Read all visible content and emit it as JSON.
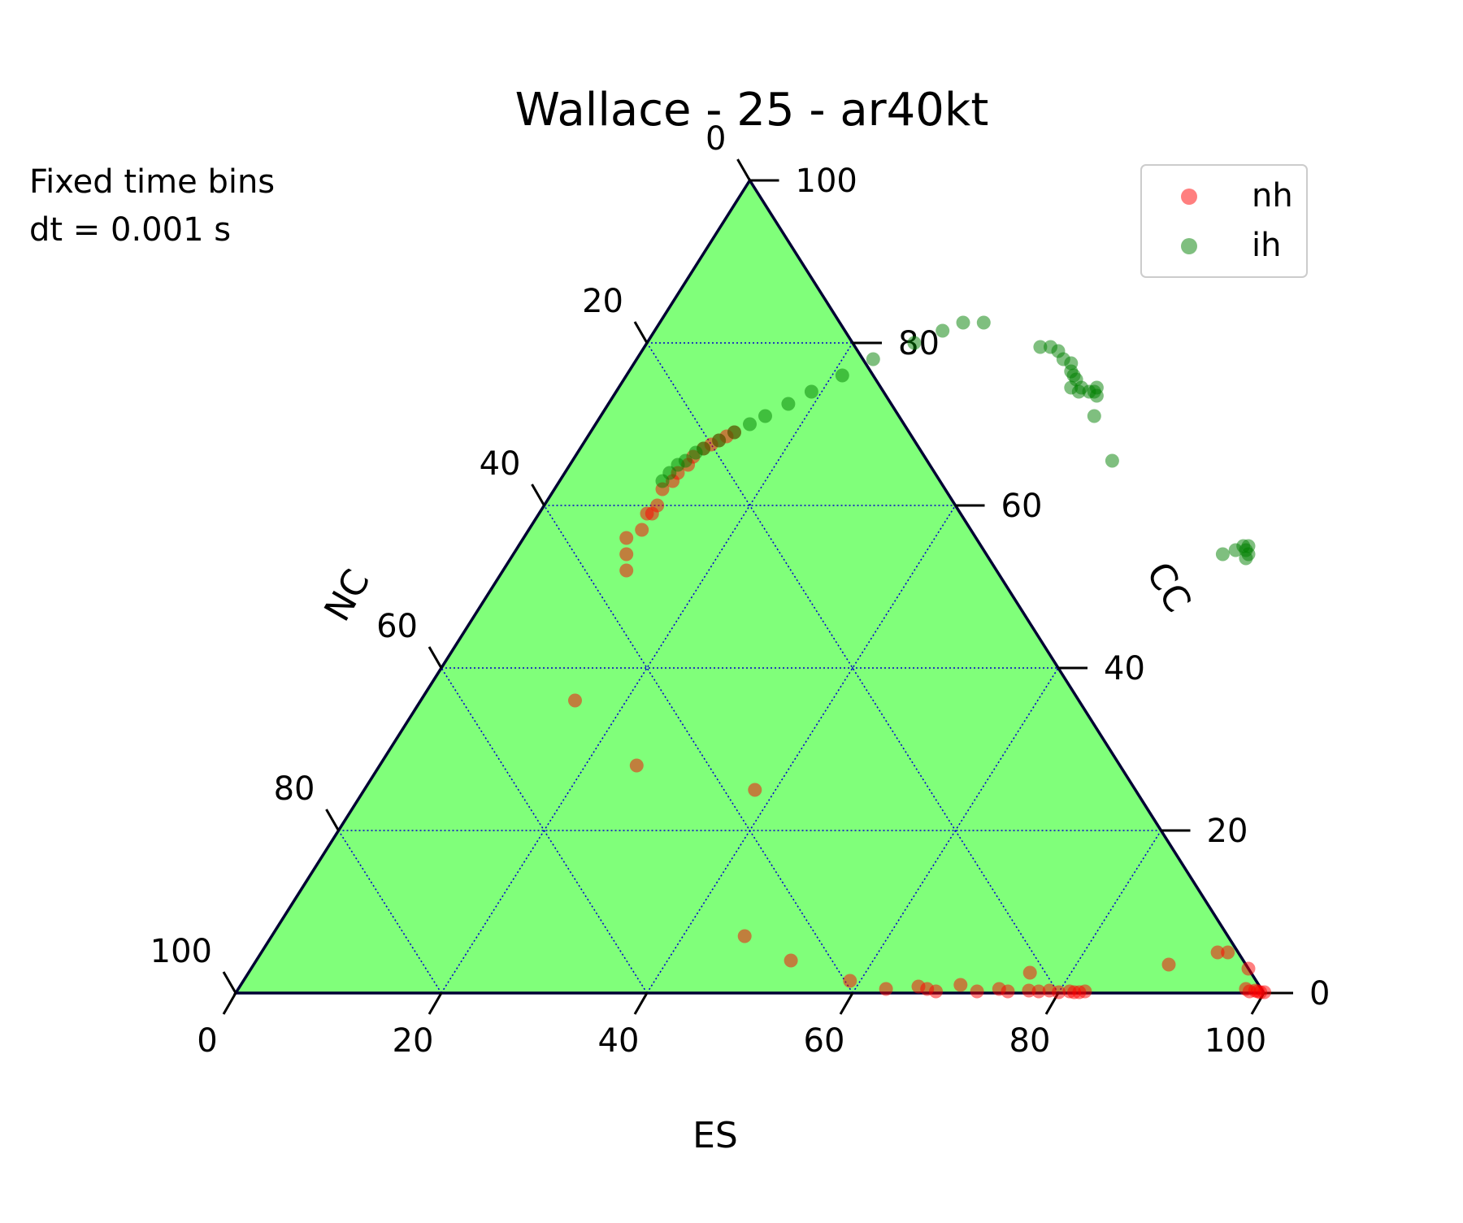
{
  "chart_data": {
    "type": "scatter",
    "subtype": "ternary",
    "title": "Wallace - 25 - ar40kt",
    "annotation_lines": [
      "Fixed time bins",
      "dt = 0.001 s"
    ],
    "axes": {
      "bottom": {
        "label": "ES",
        "ticks": [
          "0",
          "20",
          "40",
          "60",
          "80",
          "100"
        ]
      },
      "left": {
        "label": "NC",
        "ticks": [
          "100",
          "80",
          "60",
          "40",
          "20",
          "0"
        ]
      },
      "right": {
        "label": "CC",
        "ticks": [
          "0",
          "20",
          "40",
          "60",
          "80",
          "100"
        ]
      },
      "range": [
        0,
        100
      ],
      "grid": true
    },
    "background_color": "#80ff7a",
    "grid_color": "#0000cc",
    "legend": {
      "placement": "top-right",
      "entries": [
        "nh",
        "ih"
      ]
    },
    "series": [
      {
        "name": "nh",
        "color": "#ff0000",
        "opacity": 0.5,
        "points": [
          {
            "es": 14,
            "cc": 69
          },
          {
            "es": 13.5,
            "cc": 68.5
          },
          {
            "es": 13,
            "cc": 68
          },
          {
            "es": 12.5,
            "cc": 67.5
          },
          {
            "es": 12,
            "cc": 67
          },
          {
            "es": 11.5,
            "cc": 66
          },
          {
            "es": 11.5,
            "cc": 65
          },
          {
            "es": 11,
            "cc": 64
          },
          {
            "es": 11,
            "cc": 63
          },
          {
            "es": 10.5,
            "cc": 62
          },
          {
            "es": 11,
            "cc": 60
          },
          {
            "es": 10.5,
            "cc": 59
          },
          {
            "es": 11,
            "cc": 59
          },
          {
            "es": 11,
            "cc": 57
          },
          {
            "es": 10,
            "cc": 56
          },
          {
            "es": 11,
            "cc": 54
          },
          {
            "es": 12,
            "cc": 52
          },
          {
            "es": 15,
            "cc": 36
          },
          {
            "es": 25,
            "cc": 28
          },
          {
            "es": 38,
            "cc": 25
          },
          {
            "es": 46,
            "cc": 7
          },
          {
            "es": 52,
            "cc": 4
          },
          {
            "es": 59,
            "cc": 1.5
          },
          {
            "es": 63,
            "cc": 0.5
          },
          {
            "es": 66,
            "cc": 0.8
          },
          {
            "es": 67,
            "cc": 0.5
          },
          {
            "es": 68,
            "cc": 0.2
          },
          {
            "es": 70,
            "cc": 1
          },
          {
            "es": 72,
            "cc": 0.2
          },
          {
            "es": 74,
            "cc": 0.5
          },
          {
            "es": 75,
            "cc": 0.2
          },
          {
            "es": 76,
            "cc": 2.5
          },
          {
            "es": 77,
            "cc": 0.3
          },
          {
            "es": 78,
            "cc": 0.2
          },
          {
            "es": 79,
            "cc": 0.3
          },
          {
            "es": 80,
            "cc": 0.1
          },
          {
            "es": 81,
            "cc": 0.2
          },
          {
            "es": 81.5,
            "cc": 0.1
          },
          {
            "es": 82,
            "cc": 0.1
          },
          {
            "es": 82.5,
            "cc": 0.2
          },
          {
            "es": 89,
            "cc": 3.5
          },
          {
            "es": 93,
            "cc": 5
          },
          {
            "es": 94,
            "cc": 5
          },
          {
            "es": 97,
            "cc": 3
          },
          {
            "es": 98,
            "cc": 0.5
          },
          {
            "es": 98.5,
            "cc": 0.2
          },
          {
            "es": 99,
            "cc": 0.3
          },
          {
            "es": 99.3,
            "cc": 0.2
          },
          {
            "es": 99.6,
            "cc": 0.1
          },
          {
            "es": 100,
            "cc": 0.1
          }
        ]
      },
      {
        "name": "ih",
        "color": "#008000",
        "opacity": 0.5,
        "points": [
          {
            "es": 10,
            "cc": 63
          },
          {
            "es": 10.2,
            "cc": 64
          },
          {
            "es": 10.5,
            "cc": 65
          },
          {
            "es": 11,
            "cc": 65.5
          },
          {
            "es": 11.5,
            "cc": 66.5
          },
          {
            "es": 12,
            "cc": 67
          },
          {
            "es": 13,
            "cc": 68
          },
          {
            "es": 14,
            "cc": 69
          },
          {
            "es": 15,
            "cc": 70
          },
          {
            "es": 16,
            "cc": 71
          },
          {
            "es": 17.5,
            "cc": 72.5
          },
          {
            "es": 19,
            "cc": 74
          },
          {
            "es": 21,
            "cc": 76
          },
          {
            "es": 23,
            "cc": 78
          },
          {
            "es": 26,
            "cc": 80
          },
          {
            "es": 28,
            "cc": 81.5
          },
          {
            "es": 29.5,
            "cc": 82.5
          },
          {
            "es": 31.5,
            "cc": 82.5
          },
          {
            "es": 38.5,
            "cc": 79.5
          },
          {
            "es": 39.5,
            "cc": 79.5
          },
          {
            "es": 40.5,
            "cc": 79
          },
          {
            "es": 41.5,
            "cc": 78
          },
          {
            "es": 42.5,
            "cc": 77.5
          },
          {
            "es": 43,
            "cc": 76.5
          },
          {
            "es": 43.5,
            "cc": 76
          },
          {
            "es": 44,
            "cc": 75.5
          },
          {
            "es": 44,
            "cc": 74.5
          },
          {
            "es": 45,
            "cc": 74.5
          },
          {
            "es": 45,
            "cc": 74
          },
          {
            "es": 46,
            "cc": 74
          },
          {
            "es": 46.5,
            "cc": 74
          },
          {
            "es": 46.5,
            "cc": 74.5
          },
          {
            "es": 47,
            "cc": 73.5
          },
          {
            "es": 48,
            "cc": 71
          },
          {
            "es": 52.5,
            "cc": 65.5
          },
          {
            "es": 69,
            "cc": 54
          },
          {
            "es": 70,
            "cc": 54.5
          },
          {
            "es": 70.5,
            "cc": 55
          },
          {
            "es": 71,
            "cc": 54.5
          },
          {
            "es": 71.5,
            "cc": 54
          },
          {
            "es": 71.5,
            "cc": 53.5
          },
          {
            "es": 71,
            "cc": 55
          }
        ]
      }
    ]
  }
}
